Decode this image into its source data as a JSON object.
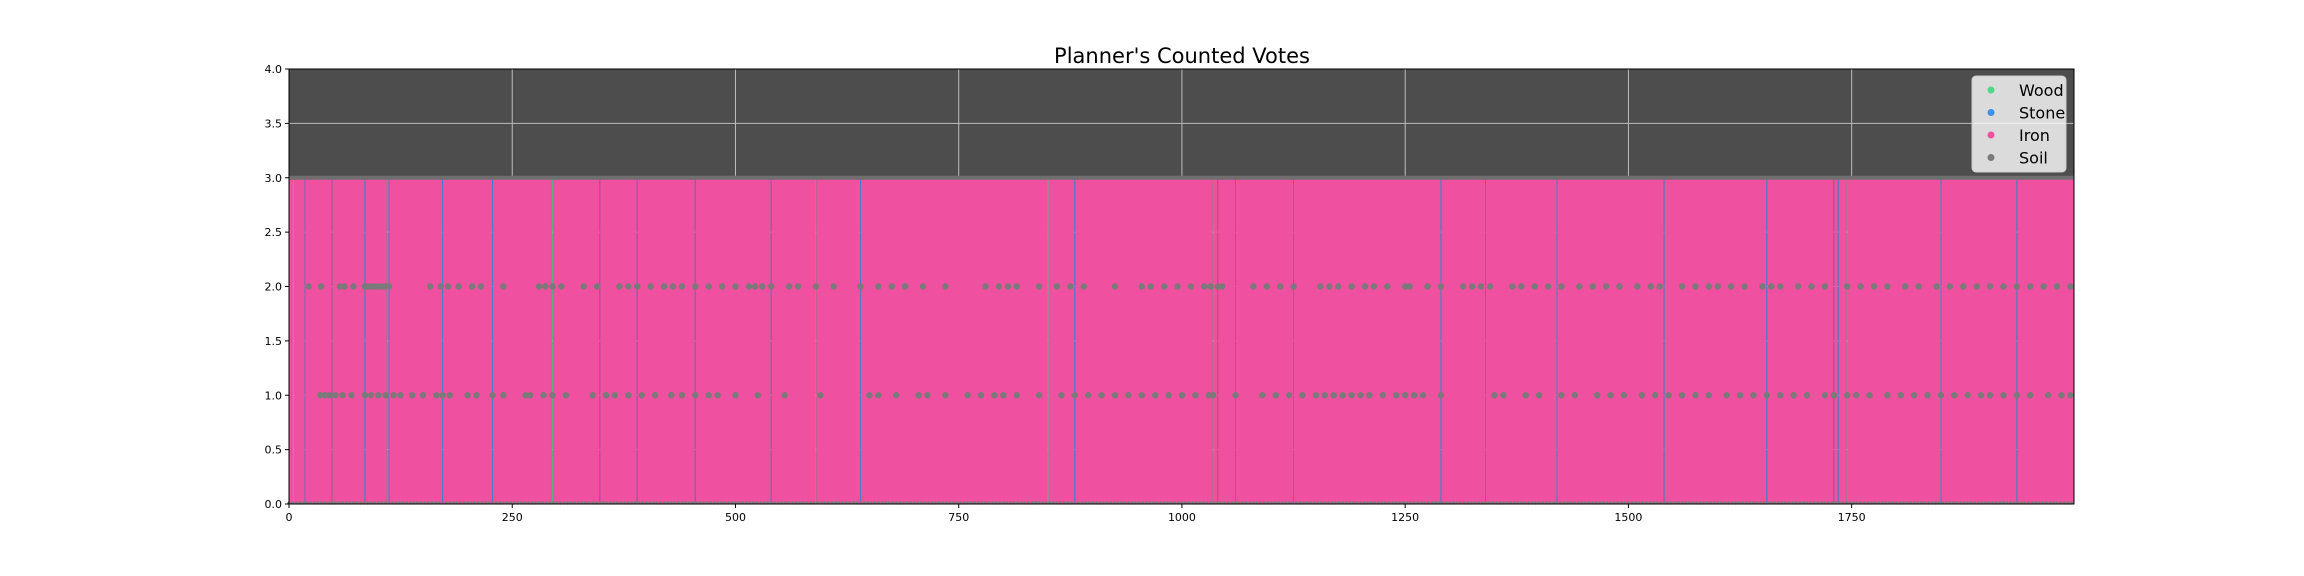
{
  "chart_data": {
    "type": "scatter",
    "title": "Planner's Counted Votes",
    "xlabel": "",
    "ylabel": "",
    "xlim": [
      0,
      1999
    ],
    "ylim": [
      0,
      4
    ],
    "x_ticks": [
      0,
      250,
      500,
      750,
      1000,
      1250,
      1500,
      1750
    ],
    "y_ticks": [
      "0.0",
      "0.5",
      "1.0",
      "1.5",
      "2.0",
      "2.5",
      "3.0",
      "3.5",
      "4.0"
    ],
    "grid": true,
    "plot_background": "#4d4d4d",
    "legend_position": "top-right",
    "n_points": 2000,
    "x_start": 0,
    "x_step": 1,
    "series": [
      {
        "name": "Wood",
        "color": "#4cd98a",
        "value": 3,
        "x": [
          5,
          110,
          295,
          590,
          850,
          1035,
          1745
        ]
      },
      {
        "name": "Stone",
        "color": "#3f8fe6",
        "value": 3,
        "x": [
          18,
          48,
          85,
          112,
          172,
          228,
          348,
          390,
          455,
          540,
          640,
          880,
          1040,
          1060,
          1125,
          1290,
          1340,
          1420,
          1540,
          1655,
          1730,
          1735,
          1850,
          1935
        ]
      },
      {
        "name": "Iron",
        "color": "#f050a0",
        "value": 3,
        "fill_all_remaining": true
      },
      {
        "name": "Soil",
        "color": "#7a7a7a",
        "value_counts_x": {
          "2": [
            22,
            36,
            57,
            62,
            72,
            85,
            88,
            92,
            96,
            100,
            104,
            108,
            112,
            158,
            170,
            178,
            190,
            205,
            215,
            240,
            280,
            287,
            295,
            305,
            330,
            345,
            370,
            380,
            390,
            405,
            420,
            430,
            440,
            455,
            470,
            485,
            500,
            515,
            522,
            530,
            540,
            560,
            570,
            590,
            610,
            640,
            660,
            675,
            690,
            710,
            735,
            780,
            795,
            805,
            815,
            840,
            860,
            875,
            890,
            925,
            955,
            965,
            980,
            995,
            1010,
            1025,
            1032,
            1040,
            1045,
            1080,
            1095,
            1110,
            1125,
            1155,
            1165,
            1175,
            1190,
            1205,
            1215,
            1230,
            1250,
            1255,
            1275,
            1290,
            1315,
            1325,
            1335,
            1345,
            1370,
            1380,
            1395,
            1410,
            1425,
            1445,
            1460,
            1475,
            1490,
            1510,
            1525,
            1535,
            1560,
            1575,
            1590,
            1600,
            1615,
            1630,
            1650,
            1660,
            1670,
            1690,
            1705,
            1720,
            1745,
            1760,
            1775,
            1790,
            1810,
            1825,
            1845,
            1860,
            1875,
            1890,
            1905,
            1920,
            1935,
            1950,
            1965,
            1980,
            1995
          ],
          "1": [
            35,
            40,
            45,
            52,
            60,
            70,
            85,
            92,
            100,
            108,
            117,
            125,
            138,
            150,
            165,
            172,
            180,
            200,
            210,
            228,
            240,
            265,
            270,
            285,
            295,
            310,
            340,
            355,
            365,
            380,
            395,
            410,
            428,
            440,
            455,
            470,
            480,
            500,
            525,
            555,
            595,
            650,
            660,
            680,
            705,
            715,
            735,
            760,
            775,
            790,
            800,
            815,
            840,
            865,
            880,
            895,
            910,
            925,
            940,
            955,
            970,
            985,
            1000,
            1015,
            1030,
            1035,
            1060,
            1090,
            1105,
            1120,
            1135,
            1150,
            1160,
            1170,
            1180,
            1190,
            1200,
            1210,
            1225,
            1240,
            1250,
            1260,
            1270,
            1290,
            1350,
            1360,
            1385,
            1400,
            1425,
            1440,
            1465,
            1480,
            1495,
            1515,
            1530,
            1545,
            1560,
            1575,
            1590,
            1610,
            1625,
            1640,
            1655,
            1670,
            1685,
            1700,
            1720,
            1730,
            1745,
            1755,
            1770,
            1790,
            1805,
            1820,
            1835,
            1850,
            1865,
            1880,
            1895,
            1905,
            1920,
            1935,
            1950,
            1970,
            1985,
            1995
          ],
          "3": [],
          "4": []
        }
      }
    ]
  }
}
